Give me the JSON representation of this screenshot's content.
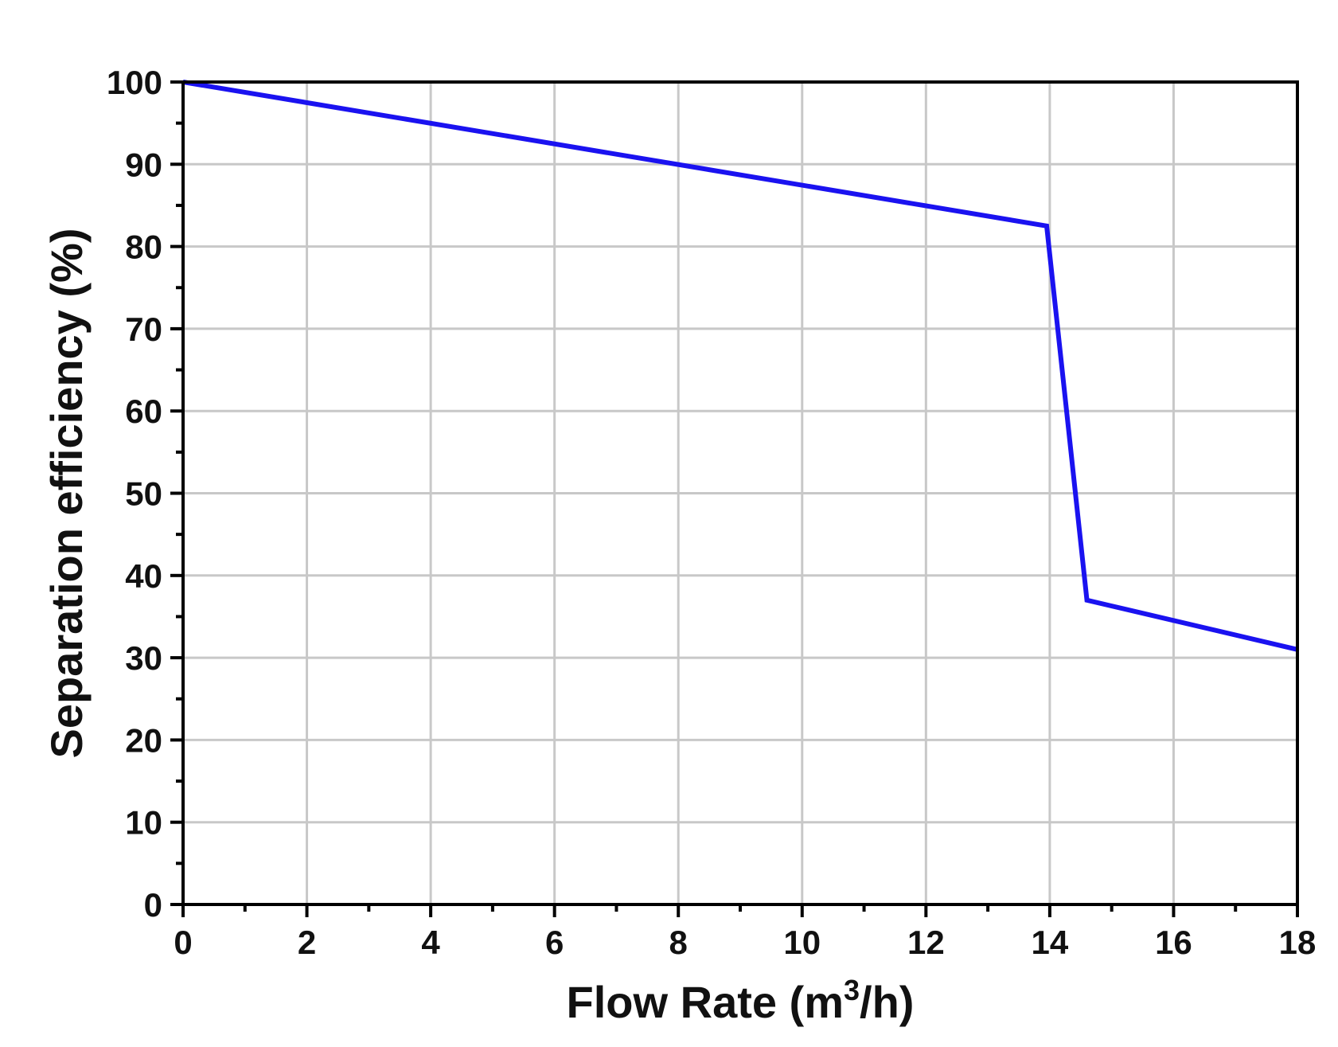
{
  "chart_data": {
    "type": "line",
    "xlabel_main": "Flow Rate (m",
    "xlabel_sup": "3",
    "xlabel_end": "/h)",
    "ylabel": "Separation efficiency (%)",
    "xlim": [
      0,
      18
    ],
    "ylim": [
      0,
      100
    ],
    "x_ticks": [
      "0",
      "2",
      "4",
      "6",
      "8",
      "10",
      "12",
      "14",
      "16",
      "18"
    ],
    "y_ticks": [
      "0",
      "10",
      "20",
      "30",
      "40",
      "50",
      "60",
      "70",
      "80",
      "90",
      "100"
    ],
    "grid": true,
    "series": [
      {
        "color": "#1a12f0",
        "x": [
          0,
          13.95,
          14.6,
          18
        ],
        "y": [
          100,
          82.5,
          37,
          31
        ]
      }
    ]
  }
}
